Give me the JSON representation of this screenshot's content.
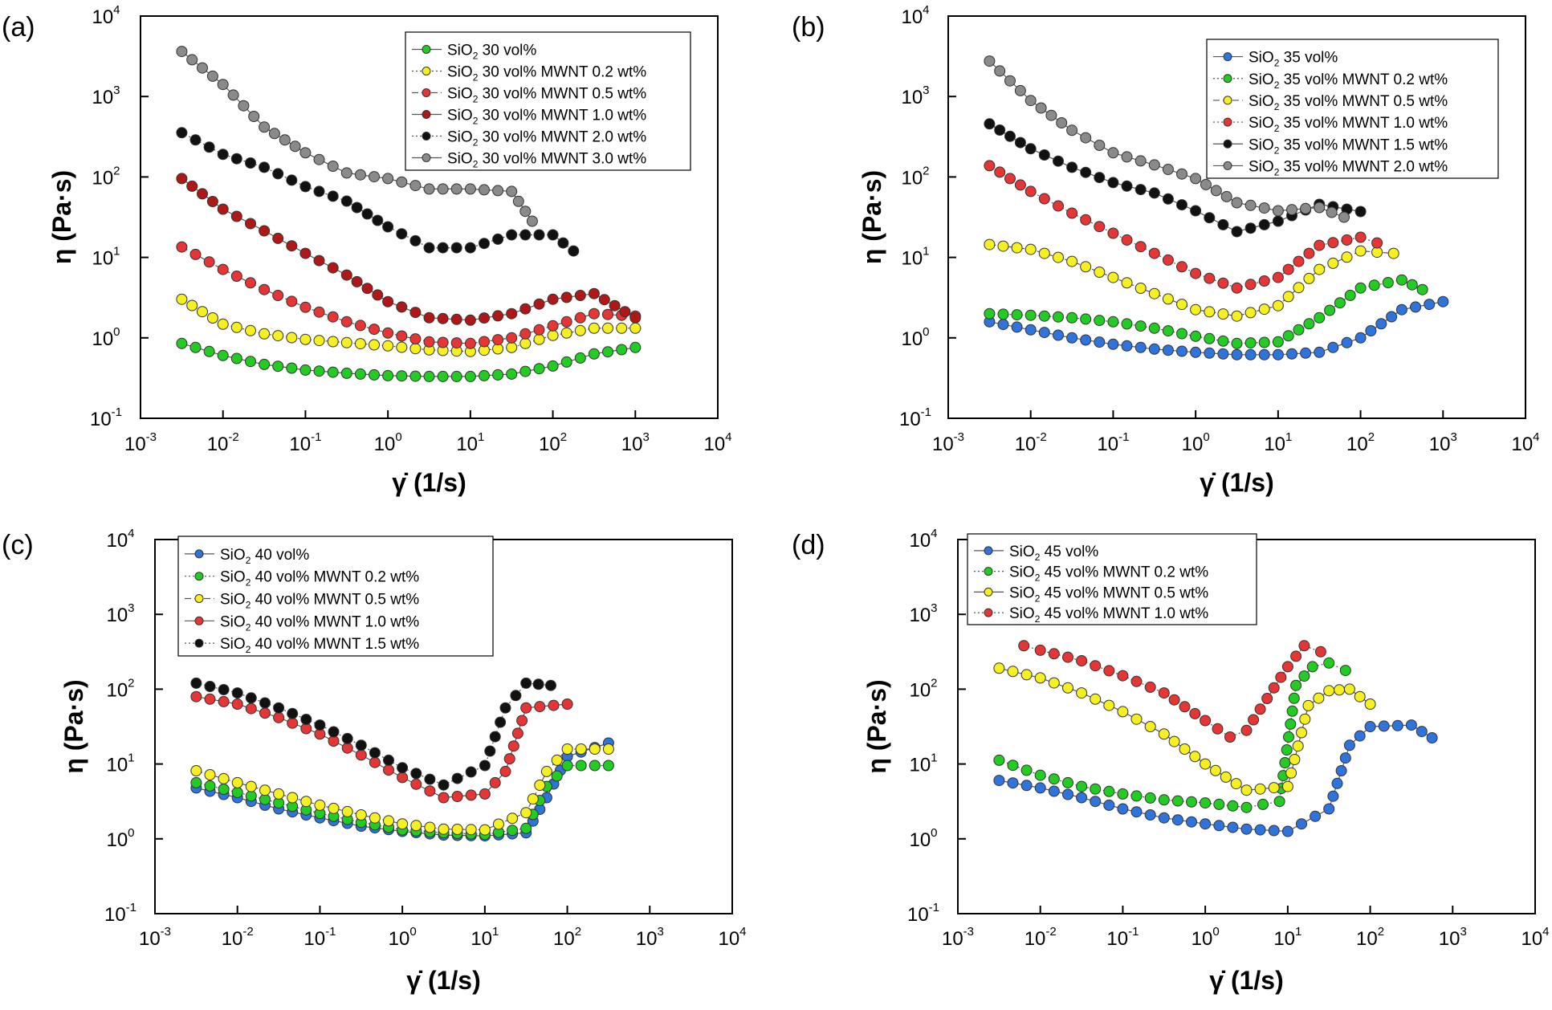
{
  "figure": {
    "xlabel": "γ̇ (1/s)",
    "ylabel": "η (Pa·s)"
  },
  "colors": {
    "green": "#22cc22",
    "yellow": "#f6f021",
    "red": "#e53535",
    "darkred": "#b01818",
    "black": "#111111",
    "gray": "#8a8a8a",
    "blue": "#2f74dc"
  },
  "chart_data": [
    {
      "panel": "(a)",
      "type": "scatter",
      "xscale": "log",
      "yscale": "log",
      "xlim": [
        0.001,
        10000
      ],
      "ylim": [
        0.1,
        10000
      ],
      "xticks": [
        {
          "base": "10",
          "exp": "-3"
        },
        {
          "base": "10",
          "exp": "-2"
        },
        {
          "base": "10",
          "exp": "-1"
        },
        {
          "base": "10",
          "exp": "0"
        },
        {
          "base": "10",
          "exp": "1"
        },
        {
          "base": "10",
          "exp": "2"
        },
        {
          "base": "10",
          "exp": "3"
        },
        {
          "base": "10",
          "exp": "4"
        }
      ],
      "yticks": [
        {
          "base": "10",
          "exp": "-1"
        },
        {
          "base": "10",
          "exp": "0"
        },
        {
          "base": "10",
          "exp": "1"
        },
        {
          "base": "10",
          "exp": "2"
        },
        {
          "base": "10",
          "exp": "3"
        },
        {
          "base": "10",
          "exp": "4"
        }
      ],
      "ytick_labels_shown": [
        "10-1",
        "100",
        "10 1",
        "10 2",
        "103",
        "104"
      ],
      "legend_position": "top-right",
      "series": [
        {
          "pre": "SiO",
          "sub": "2",
          "post": " 30 vol%",
          "color": "green",
          "line": "solid",
          "logx": [
            -2.5,
            -2.0,
            -1.5,
            -1.0,
            -0.5,
            0.0,
            0.5,
            1.0,
            1.5,
            2.0,
            2.5,
            3.0
          ],
          "logy": [
            -0.07,
            -0.22,
            -0.33,
            -0.4,
            -0.44,
            -0.47,
            -0.48,
            -0.48,
            -0.45,
            -0.35,
            -0.2,
            -0.12
          ]
        },
        {
          "pre": "SiO",
          "sub": "2",
          "post": " 30 vol% MWNT 0.2 wt%",
          "color": "yellow",
          "line": "dotted",
          "logx": [
            -2.5,
            -2.0,
            -1.5,
            -1.0,
            -0.5,
            0.0,
            0.5,
            1.0,
            1.5,
            2.0,
            2.5,
            3.0
          ],
          "logy": [
            0.48,
            0.17,
            0.05,
            -0.02,
            -0.06,
            -0.1,
            -0.15,
            -0.17,
            -0.12,
            0.03,
            0.12,
            0.12
          ]
        },
        {
          "pre": "SiO",
          "sub": "2",
          "post": " 30 vol% MWNT 0.5 wt%",
          "color": "red",
          "line": "dashed",
          "logx": [
            -2.5,
            -2.0,
            -1.5,
            -1.0,
            -0.5,
            0.0,
            0.5,
            1.0,
            1.5,
            2.0,
            2.5,
            3.0
          ],
          "logy": [
            1.13,
            0.85,
            0.6,
            0.38,
            0.2,
            0.06,
            -0.05,
            -0.07,
            0.0,
            0.15,
            0.3,
            0.27
          ]
        },
        {
          "pre": "SiO",
          "sub": "2",
          "post": " 30 vol% MWNT 1.0 wt%",
          "color": "darkred",
          "line": "solid",
          "logx": [
            -2.5,
            -2.0,
            -1.5,
            -1.0,
            -0.5,
            0.0,
            0.5,
            1.0,
            1.5,
            2.0,
            2.5,
            3.0
          ],
          "logy": [
            1.98,
            1.6,
            1.33,
            1.05,
            0.78,
            0.45,
            0.25,
            0.22,
            0.3,
            0.48,
            0.55,
            0.25
          ]
        },
        {
          "pre": "SiO",
          "sub": "2",
          "post": " 30 vol% MWNT 2.0 wt%",
          "color": "black",
          "line": "dotted",
          "logx": [
            -2.5,
            -2.0,
            -1.5,
            -1.0,
            -0.5,
            0.0,
            0.5,
            1.0,
            1.5,
            2.0,
            2.25
          ],
          "logy": [
            2.55,
            2.28,
            2.12,
            1.88,
            1.7,
            1.38,
            1.12,
            1.12,
            1.28,
            1.28,
            1.08
          ]
        },
        {
          "pre": "SiO",
          "sub": "2",
          "post": " 30 vol% MWNT 3.0 wt%",
          "color": "gray",
          "line": "solid",
          "logx": [
            -2.5,
            -2.0,
            -1.5,
            -1.0,
            -0.5,
            0.0,
            0.5,
            1.0,
            1.5,
            1.75
          ],
          "logy": [
            3.56,
            3.15,
            2.62,
            2.3,
            2.05,
            1.98,
            1.85,
            1.85,
            1.82,
            1.45
          ]
        }
      ]
    },
    {
      "panel": "(b)",
      "type": "scatter",
      "xscale": "log",
      "yscale": "log",
      "xlim": [
        0.001,
        10000
      ],
      "ylim": [
        0.1,
        10000
      ],
      "xticks": [
        {
          "base": "10",
          "exp": "-3"
        },
        {
          "base": "10",
          "exp": "-2"
        },
        {
          "base": "10",
          "exp": "-1"
        },
        {
          "base": "10",
          "exp": "0"
        },
        {
          "base": "10",
          "exp": "1"
        },
        {
          "base": "10",
          "exp": "2"
        },
        {
          "base": "10",
          "exp": "3"
        },
        {
          "base": "10",
          "exp": "4"
        }
      ],
      "yticks": [
        {
          "base": "10",
          "exp": "-1"
        },
        {
          "base": "10",
          "exp": "0"
        },
        {
          "base": "10",
          "exp": "1"
        },
        {
          "base": "10",
          "exp": "2"
        },
        {
          "base": "10",
          "exp": "3"
        },
        {
          "base": "10",
          "exp": "4"
        }
      ],
      "legend_position": "top-right",
      "series": [
        {
          "pre": "SiO",
          "sub": "2",
          "post": " 35 vol%",
          "color": "blue",
          "line": "solid",
          "logx": [
            -2.5,
            -2.0,
            -1.5,
            -1.0,
            -0.5,
            0.0,
            0.5,
            1.0,
            1.5,
            2.0,
            2.5,
            3.0
          ],
          "logy": [
            0.2,
            0.1,
            0.0,
            -0.08,
            -0.14,
            -0.18,
            -0.21,
            -0.21,
            -0.18,
            0.0,
            0.35,
            0.45
          ]
        },
        {
          "pre": "SiO",
          "sub": "2",
          "post": " 35 vol% MWNT 0.2 wt%",
          "color": "green",
          "line": "dotted",
          "logx": [
            -2.5,
            -2.0,
            -1.5,
            -1.0,
            -0.5,
            0.0,
            0.5,
            1.0,
            1.5,
            2.0,
            2.5,
            2.75
          ],
          "logy": [
            0.3,
            0.28,
            0.25,
            0.2,
            0.12,
            0.02,
            -0.07,
            -0.05,
            0.25,
            0.62,
            0.72,
            0.6
          ]
        },
        {
          "pre": "SiO",
          "sub": "2",
          "post": " 35 vol% MWNT 0.5 wt%",
          "color": "yellow",
          "line": "dashed",
          "logx": [
            -2.5,
            -2.0,
            -1.5,
            -1.0,
            -0.5,
            0.0,
            0.5,
            1.0,
            1.5,
            2.0,
            2.4
          ],
          "logy": [
            1.16,
            1.1,
            0.95,
            0.75,
            0.55,
            0.35,
            0.27,
            0.4,
            0.85,
            1.08,
            1.05
          ]
        },
        {
          "pre": "SiO",
          "sub": "2",
          "post": " 35 vol% MWNT 1.0 wt%",
          "color": "red",
          "line": "dotted",
          "logx": [
            -2.5,
            -2.0,
            -1.5,
            -1.0,
            -0.5,
            0.0,
            0.5,
            1.0,
            1.5,
            2.0,
            2.2
          ],
          "logy": [
            2.14,
            1.82,
            1.55,
            1.3,
            1.05,
            0.8,
            0.62,
            0.75,
            1.15,
            1.25,
            1.18
          ]
        },
        {
          "pre": "SiO",
          "sub": "2",
          "post": " 35 vol% MWNT 1.5 wt%",
          "color": "black",
          "line": "solid",
          "logx": [
            -2.5,
            -2.0,
            -1.5,
            -1.0,
            -0.5,
            0.0,
            0.5,
            1.0,
            1.5,
            2.0
          ],
          "logy": [
            2.66,
            2.35,
            2.12,
            1.93,
            1.8,
            1.58,
            1.32,
            1.45,
            1.66,
            1.57
          ]
        },
        {
          "pre": "SiO",
          "sub": "2",
          "post": " 35 vol% MWNT 2.0 wt%",
          "color": "gray",
          "line": "solid",
          "logx": [
            -2.5,
            -2.0,
            -1.5,
            -1.0,
            -0.5,
            0.0,
            0.5,
            1.0,
            1.5,
            1.8
          ],
          "logy": [
            3.44,
            2.95,
            2.58,
            2.3,
            2.15,
            1.98,
            1.68,
            1.58,
            1.62,
            1.5
          ]
        }
      ]
    },
    {
      "panel": "(c)",
      "type": "scatter",
      "xscale": "log",
      "yscale": "log",
      "xlim": [
        0.001,
        10000
      ],
      "ylim": [
        0.1,
        10000
      ],
      "xticks": [
        {
          "base": "10",
          "exp": "-3"
        },
        {
          "base": "10",
          "exp": "-2"
        },
        {
          "base": "10",
          "exp": "-1"
        },
        {
          "base": "10",
          "exp": "0"
        },
        {
          "base": "10",
          "exp": "1"
        },
        {
          "base": "10",
          "exp": "2"
        },
        {
          "base": "10",
          "exp": "3"
        },
        {
          "base": "10",
          "exp": "4"
        }
      ],
      "yticks": [
        {
          "base": "10",
          "exp": "-1"
        },
        {
          "base": "10",
          "exp": "0"
        },
        {
          "base": "10",
          "exp": "1"
        },
        {
          "base": "10",
          "exp": "2"
        },
        {
          "base": "10",
          "exp": "3"
        },
        {
          "base": "10",
          "exp": "4"
        }
      ],
      "legend_position": "top-left",
      "series": [
        {
          "pre": "SiO",
          "sub": "2",
          "post": " 40 vol%",
          "color": "blue",
          "line": "solid",
          "logx": [
            -2.5,
            -2.0,
            -1.5,
            -1.0,
            -0.5,
            0.0,
            0.5,
            1.0,
            1.5,
            1.75,
            2.0,
            2.5
          ],
          "logy": [
            0.68,
            0.55,
            0.4,
            0.28,
            0.17,
            0.1,
            0.05,
            0.04,
            0.08,
            0.55,
            1.1,
            1.28
          ]
        },
        {
          "pre": "SiO",
          "sub": "2",
          "post": " 40 vol% MWNT 0.2 wt%",
          "color": "green",
          "line": "dotted",
          "logx": [
            -2.5,
            -2.0,
            -1.5,
            -1.0,
            -0.5,
            0.0,
            0.5,
            1.0,
            1.5,
            1.75,
            2.0,
            2.5
          ],
          "logy": [
            0.75,
            0.62,
            0.48,
            0.34,
            0.22,
            0.12,
            0.08,
            0.06,
            0.14,
            0.7,
            0.98,
            0.98
          ]
        },
        {
          "pre": "SiO",
          "sub": "2",
          "post": " 40 vol% MWNT 0.5 wt%",
          "color": "yellow",
          "line": "dashed",
          "logx": [
            -2.5,
            -2.0,
            -1.5,
            -1.0,
            -0.5,
            0.0,
            0.5,
            1.0,
            1.5,
            1.75,
            2.0,
            2.5
          ],
          "logy": [
            0.91,
            0.75,
            0.6,
            0.45,
            0.32,
            0.2,
            0.13,
            0.12,
            0.35,
            0.9,
            1.2,
            1.2
          ]
        },
        {
          "pre": "SiO",
          "sub": "2",
          "post": " 40 vol% MWNT 1.0 wt%",
          "color": "red",
          "line": "solid",
          "logx": [
            -2.5,
            -2.0,
            -1.5,
            -1.0,
            -0.5,
            0.0,
            0.5,
            1.0,
            1.25,
            1.5,
            2.0
          ],
          "logy": [
            1.9,
            1.8,
            1.62,
            1.4,
            1.12,
            0.82,
            0.55,
            0.6,
            0.9,
            1.75,
            1.8
          ]
        },
        {
          "pre": "SiO",
          "sub": "2",
          "post": " 40 vol% MWNT 1.5 wt%",
          "color": "black",
          "line": "dotted",
          "logx": [
            -2.5,
            -2.0,
            -1.5,
            -1.0,
            -0.5,
            0.0,
            0.5,
            1.0,
            1.25,
            1.5,
            1.8
          ],
          "logy": [
            2.08,
            1.95,
            1.75,
            1.52,
            1.25,
            0.95,
            0.72,
            0.98,
            1.75,
            2.08,
            2.05
          ]
        }
      ]
    },
    {
      "panel": "(d)",
      "type": "scatter",
      "xscale": "log",
      "yscale": "log",
      "xlim": [
        0.001,
        10000
      ],
      "ylim": [
        0.1,
        10000
      ],
      "xticks": [
        {
          "base": "10",
          "exp": "-3"
        },
        {
          "base": "10",
          "exp": "-2"
        },
        {
          "base": "10",
          "exp": "-1"
        },
        {
          "base": "10",
          "exp": "0"
        },
        {
          "base": "10",
          "exp": "1"
        },
        {
          "base": "10",
          "exp": "2"
        },
        {
          "base": "10",
          "exp": "3"
        },
        {
          "base": "10",
          "exp": "4"
        }
      ],
      "yticks": [
        {
          "base": "10",
          "exp": "-1"
        },
        {
          "base": "10",
          "exp": "0"
        },
        {
          "base": "10",
          "exp": "1"
        },
        {
          "base": "10",
          "exp": "2"
        },
        {
          "base": "10",
          "exp": "3"
        },
        {
          "base": "10",
          "exp": "4"
        }
      ],
      "legend_position": "top-left",
      "series": [
        {
          "pre": "SiO",
          "sub": "2",
          "post": " 45 vol%",
          "color": "blue",
          "line": "solid",
          "logx": [
            -2.5,
            -2.0,
            -1.5,
            -1.0,
            -0.5,
            0.0,
            0.5,
            1.0,
            1.5,
            1.75,
            2.0,
            2.5,
            2.75
          ],
          "logy": [
            0.78,
            0.68,
            0.55,
            0.4,
            0.28,
            0.2,
            0.13,
            0.1,
            0.4,
            1.25,
            1.5,
            1.52,
            1.35
          ]
        },
        {
          "pre": "SiO",
          "sub": "2",
          "post": " 45 vol% MWNT 0.2 wt%",
          "color": "green",
          "line": "dotted",
          "logx": [
            -2.5,
            -2.0,
            -1.5,
            -1.0,
            -0.5,
            0.0,
            0.5,
            0.9,
            1.1,
            1.3,
            1.5,
            1.7
          ],
          "logy": [
            1.05,
            0.85,
            0.7,
            0.6,
            0.52,
            0.48,
            0.42,
            0.5,
            2.05,
            2.3,
            2.35,
            2.25
          ]
        },
        {
          "pre": "SiO",
          "sub": "2",
          "post": " 45 vol% MWNT 0.5 wt%",
          "color": "yellow",
          "line": "solid",
          "logx": [
            -2.5,
            -2.0,
            -1.5,
            -1.0,
            -0.5,
            0.0,
            0.5,
            1.0,
            1.25,
            1.5,
            1.75,
            2.0
          ],
          "logy": [
            2.28,
            2.15,
            1.95,
            1.7,
            1.4,
            1.0,
            0.65,
            0.7,
            1.78,
            1.98,
            2.0,
            1.8
          ]
        },
        {
          "pre": "SiO",
          "sub": "2",
          "post": " 45 vol% MWNT 1.0 wt%",
          "color": "red",
          "line": "dotted",
          "logx": [
            -2.2,
            -2.0,
            -1.5,
            -1.0,
            -0.5,
            0.0,
            0.3,
            0.5,
            1.0,
            1.2,
            1.4
          ],
          "logy": [
            2.58,
            2.52,
            2.38,
            2.18,
            1.95,
            1.58,
            1.36,
            1.45,
            2.3,
            2.58,
            2.5
          ]
        }
      ]
    }
  ]
}
